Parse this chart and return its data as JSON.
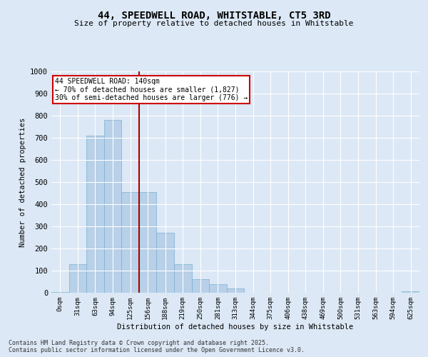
{
  "title_line1": "44, SPEEDWELL ROAD, WHITSTABLE, CT5 3RD",
  "title_line2": "Size of property relative to detached houses in Whitstable",
  "xlabel": "Distribution of detached houses by size in Whitstable",
  "ylabel": "Number of detached properties",
  "categories": [
    "0sqm",
    "31sqm",
    "63sqm",
    "94sqm",
    "125sqm",
    "156sqm",
    "188sqm",
    "219sqm",
    "250sqm",
    "281sqm",
    "313sqm",
    "344sqm",
    "375sqm",
    "406sqm",
    "438sqm",
    "469sqm",
    "500sqm",
    "531sqm",
    "563sqm",
    "594sqm",
    "625sqm"
  ],
  "values": [
    3,
    130,
    710,
    780,
    455,
    455,
    270,
    130,
    60,
    40,
    20,
    0,
    0,
    0,
    0,
    0,
    0,
    0,
    0,
    0,
    5
  ],
  "bar_color": "#b8d0e8",
  "bar_edge_color": "#7aafd4",
  "vline_color": "#aa0000",
  "vline_pos": 4.5,
  "ylim_max": 1000,
  "yticks": [
    0,
    100,
    200,
    300,
    400,
    500,
    600,
    700,
    800,
    900,
    1000
  ],
  "annotation_text": "44 SPEEDWELL ROAD: 140sqm\n← 70% of detached houses are smaller (1,827)\n30% of semi-detached houses are larger (776) →",
  "annotation_box_facecolor": "#ffffff",
  "annotation_box_edgecolor": "#cc0000",
  "bg_color": "#dce8f5",
  "grid_color": "#ffffff",
  "footer": "Contains HM Land Registry data © Crown copyright and database right 2025.\nContains public sector information licensed under the Open Government Licence v3.0."
}
